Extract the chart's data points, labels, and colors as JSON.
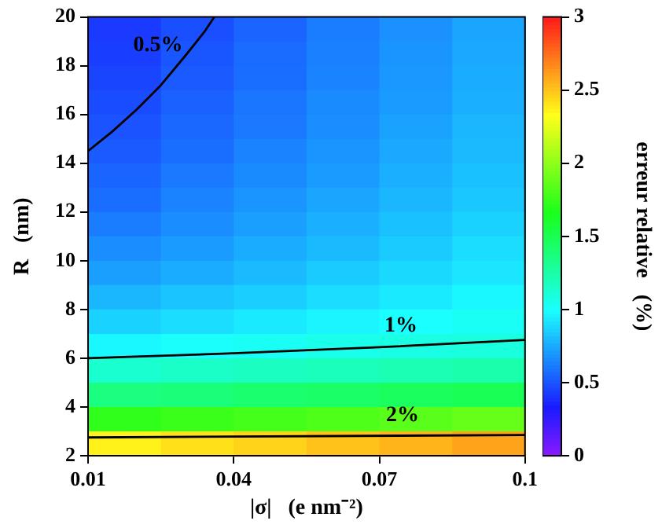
{
  "chart_data": {
    "type": "heatmap",
    "xlabel": "|σ|   (e nm⁻²)",
    "ylabel": "R   (nm)",
    "clabel": "erreur relative   (%)",
    "xlim": [
      0.01,
      0.1
    ],
    "xticks": [
      0.01,
      0.04,
      0.07,
      0.1
    ],
    "ylim": [
      2,
      20
    ],
    "yticks": [
      2,
      4,
      6,
      8,
      10,
      12,
      14,
      16,
      18,
      20
    ],
    "clim": [
      0,
      3
    ],
    "cticks": [
      0,
      0.5,
      1,
      1.5,
      2,
      2.5,
      3
    ],
    "cells": [
      [
        0.43,
        0.49,
        0.55,
        0.62,
        0.68,
        0.74
      ],
      [
        0.44,
        0.51,
        0.57,
        0.63,
        0.69,
        0.75
      ],
      [
        0.46,
        0.52,
        0.58,
        0.64,
        0.7,
        0.76
      ],
      [
        0.48,
        0.54,
        0.6,
        0.66,
        0.71,
        0.77
      ],
      [
        0.5,
        0.56,
        0.61,
        0.67,
        0.73,
        0.79
      ],
      [
        0.52,
        0.58,
        0.64,
        0.69,
        0.75,
        0.8
      ],
      [
        0.55,
        0.61,
        0.66,
        0.71,
        0.77,
        0.82
      ],
      [
        0.58,
        0.64,
        0.69,
        0.74,
        0.79,
        0.84
      ],
      [
        0.62,
        0.67,
        0.72,
        0.77,
        0.82,
        0.87
      ],
      [
        0.67,
        0.71,
        0.76,
        0.8,
        0.85,
        0.9
      ],
      [
        0.72,
        0.76,
        0.8,
        0.85,
        0.89,
        0.93
      ],
      [
        0.79,
        0.83,
        0.86,
        0.9,
        0.94,
        0.98
      ],
      [
        0.87,
        0.9,
        0.94,
        0.97,
        1.0,
        1.03
      ],
      [
        0.98,
        1.01,
        1.03,
        1.06,
        1.08,
        1.1
      ],
      [
        1.14,
        1.16,
        1.18,
        1.2,
        1.22,
        1.24
      ],
      [
        1.37,
        1.39,
        1.42,
        1.44,
        1.47,
        1.49
      ],
      [
        1.73,
        1.76,
        1.79,
        1.82,
        1.85,
        1.89
      ],
      [
        2.37,
        2.42,
        2.46,
        2.51,
        2.55,
        2.6
      ]
    ],
    "series": [
      {
        "type": "line",
        "name": "0.5%",
        "color": "#000000",
        "x": [
          0.01,
          0.015,
          0.02,
          0.025,
          0.03,
          0.034,
          0.036
        ],
        "values": [
          14.5,
          15.3,
          16.2,
          17.2,
          18.4,
          19.4,
          20
        ]
      },
      {
        "type": "line",
        "name": "1%",
        "color": "#000000",
        "x": [
          0.01,
          0.04,
          0.07,
          0.1
        ],
        "values": [
          6.0,
          6.2,
          6.45,
          6.75
        ]
      },
      {
        "type": "line",
        "name": "2%",
        "color": "#000000",
        "x": [
          0.01,
          0.1
        ],
        "values": [
          2.75,
          2.85
        ]
      }
    ]
  }
}
